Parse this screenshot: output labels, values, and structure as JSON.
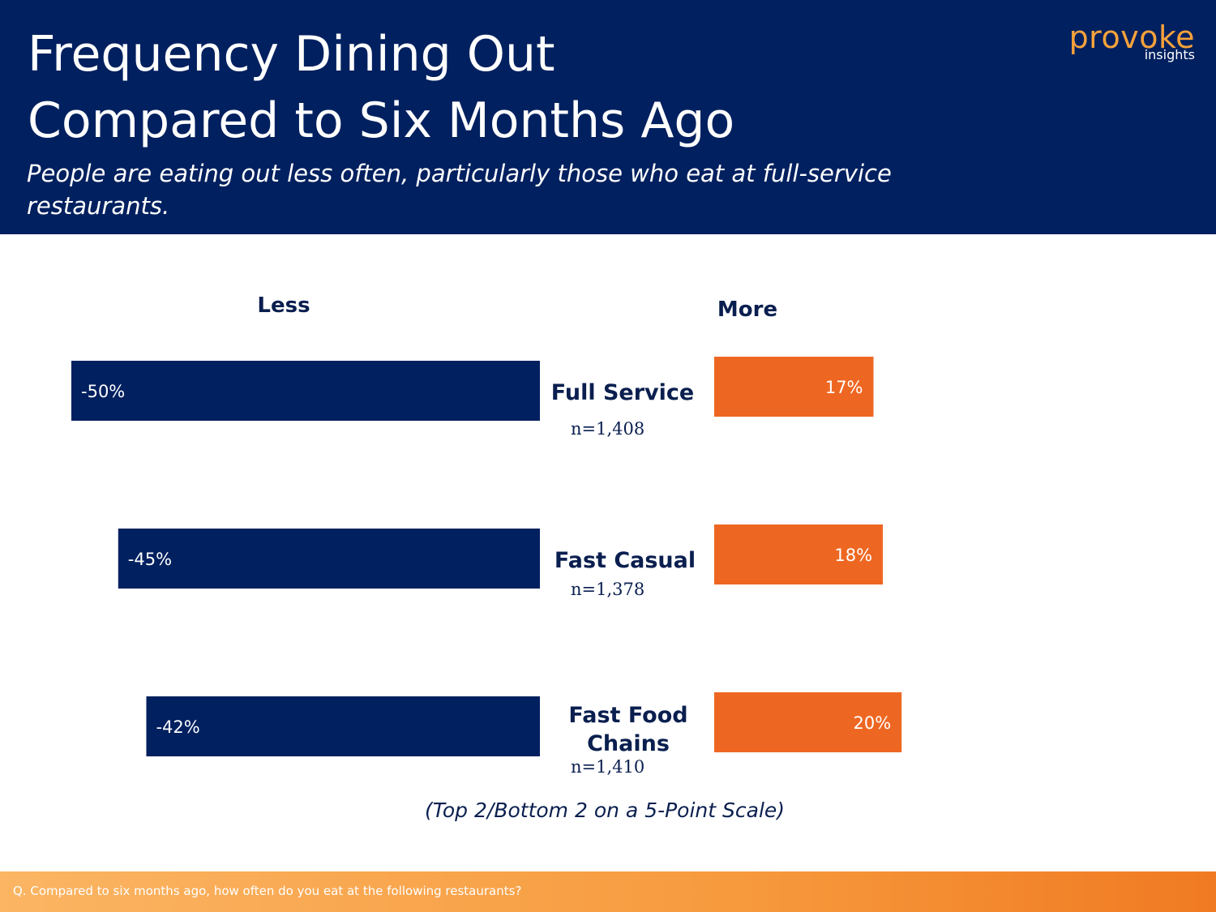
{
  "header": {
    "title_line1": "Frequency Dining Out",
    "title_line2": "Compared to Six Months Ago",
    "subtitle": "People are eating out less often, particularly those who eat at full-service restaurants."
  },
  "logo": {
    "main": "provoke",
    "sub": "insights"
  },
  "chart_data": {
    "type": "bar",
    "orientation": "horizontal-diverging",
    "column_headers": {
      "negative": "Less",
      "positive": "More"
    },
    "categories": [
      {
        "label_lines": [
          "Full Service"
        ],
        "sample": "n=1,408"
      },
      {
        "label_lines": [
          "Fast Casual"
        ],
        "sample": "n=1,378"
      },
      {
        "label_lines": [
          "Fast Food",
          "Chains"
        ],
        "sample": "n=1,410"
      }
    ],
    "series": [
      {
        "name": "Less",
        "values": [
          -50,
          -45,
          -42
        ],
        "labels": [
          "-50%",
          "-45%",
          "-42%"
        ],
        "color": "#00205f"
      },
      {
        "name": "More",
        "values": [
          17,
          18,
          20
        ],
        "labels": [
          "17%",
          "18%",
          "20%"
        ],
        "color": "#ee6722"
      }
    ],
    "note": "(Top 2/Bottom 2 on a 5-Point Scale)"
  },
  "footer": {
    "question": "Q. Compared to six months ago, how often do you eat at the following restaurants?"
  },
  "colors": {
    "navy": "#00205f",
    "orange": "#ee6722",
    "logo_orange": "#f7a23b"
  }
}
